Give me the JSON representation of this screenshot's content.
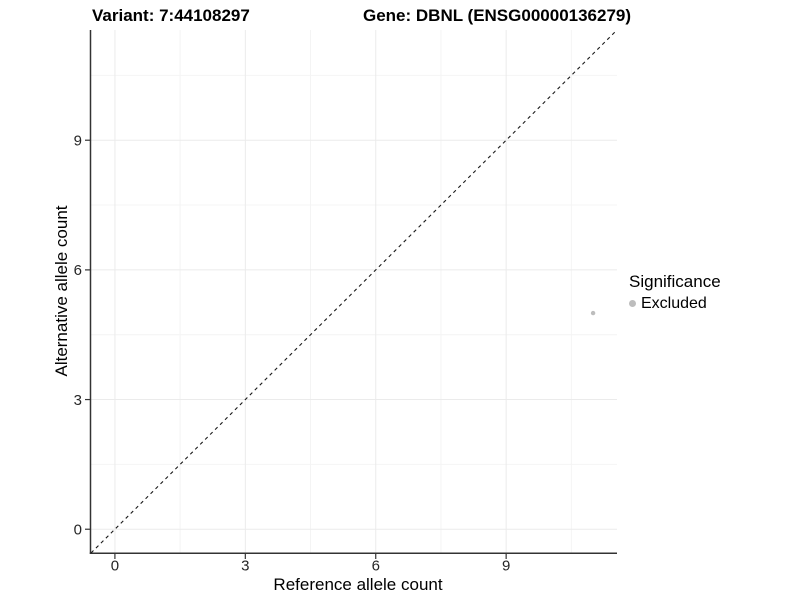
{
  "titles": {
    "variant": "Variant: 7:44108297",
    "gene": "Gene: DBNL (ENSG00000136279)"
  },
  "chart_data": {
    "type": "scatter",
    "title": "Variant: 7:44108297  Gene: DBNL (ENSG00000136279)",
    "xlabel": "Reference allele count",
    "ylabel": "Alternative allele count",
    "xlim": [
      -0.55,
      11.55
    ],
    "ylim": [
      -0.55,
      11.55
    ],
    "x_ticks": [
      0,
      3,
      6,
      9
    ],
    "y_ticks": [
      0,
      3,
      6,
      9
    ],
    "x_minor_ticks": [
      1.5,
      4.5,
      7.5,
      10.5
    ],
    "y_minor_ticks": [
      1.5,
      4.5,
      7.5,
      10.5
    ],
    "grid": "major and minor, light gray on white",
    "identity_line": {
      "style": "dashed",
      "from": [
        -0.55,
        -0.55
      ],
      "to": [
        11.55,
        11.55
      ],
      "color": "#1a1a1a"
    },
    "series": [
      {
        "name": "Excluded",
        "color": "#bdbdbd",
        "points": [
          {
            "x": 11,
            "y": 5
          }
        ]
      }
    ],
    "legend": {
      "title": "Significance",
      "position": "right",
      "entries": [
        {
          "label": "Excluded",
          "color": "#bdbdbd"
        }
      ]
    }
  },
  "colors": {
    "background": "#ffffff",
    "axis_line": "#333333",
    "tick_label": "#262626",
    "grid_major": "#ebebeb",
    "grid_minor": "#f4f4f4",
    "point": "#bdbdbd"
  }
}
